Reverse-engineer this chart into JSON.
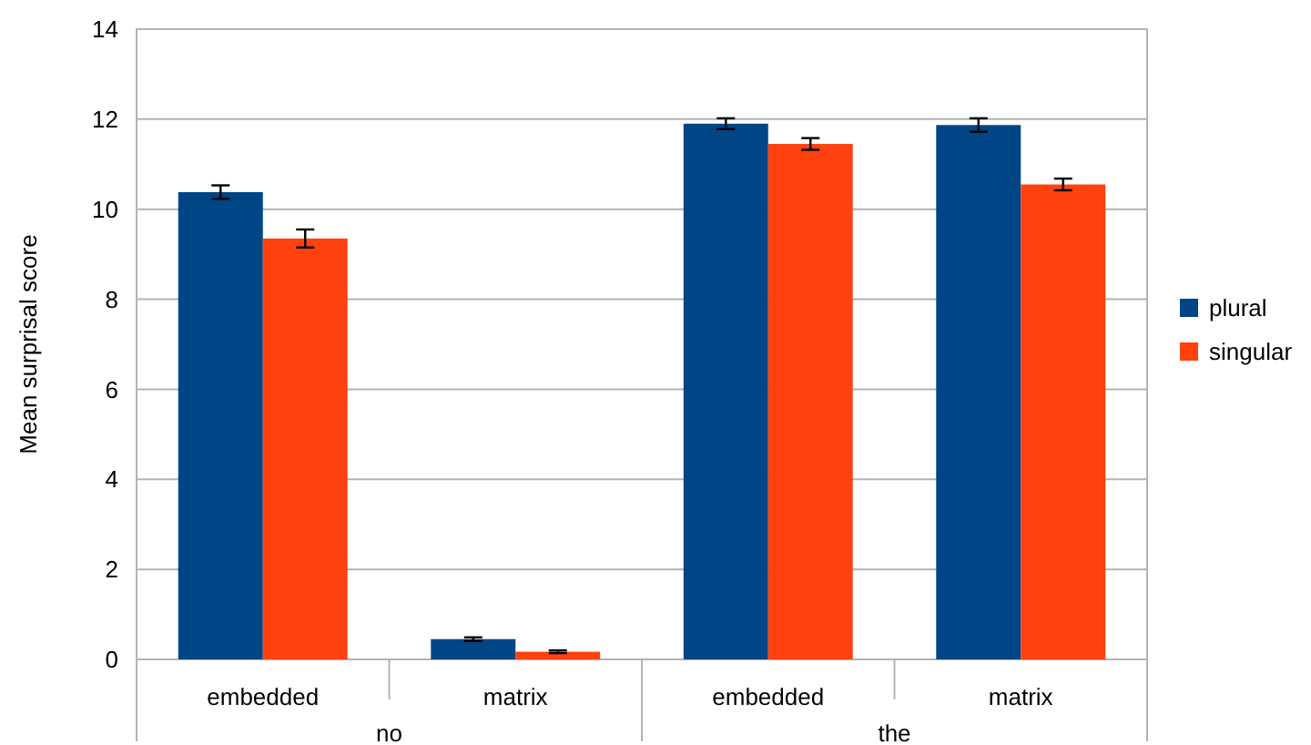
{
  "chart_data": {
    "type": "bar",
    "ylabel": "Mean surprisal score",
    "categories": [
      "embedded",
      "matrix",
      "embedded",
      "matrix"
    ],
    "annotations": [
      "no",
      "the"
    ],
    "series": [
      {
        "name": "plural",
        "color": "#004586",
        "values": [
          10.38,
          0.45,
          11.9,
          11.87
        ],
        "errors": [
          0.15,
          0.04,
          0.12,
          0.15
        ]
      },
      {
        "name": "singular",
        "color": "#ff420e",
        "values": [
          9.35,
          0.17,
          11.45,
          10.55
        ],
        "errors": [
          0.2,
          0.03,
          0.13,
          0.13
        ]
      }
    ],
    "ylim": [
      0,
      14
    ],
    "yticks": [
      0,
      2,
      4,
      6,
      8,
      10,
      12,
      14
    ],
    "grid": "y",
    "legend": "right"
  }
}
